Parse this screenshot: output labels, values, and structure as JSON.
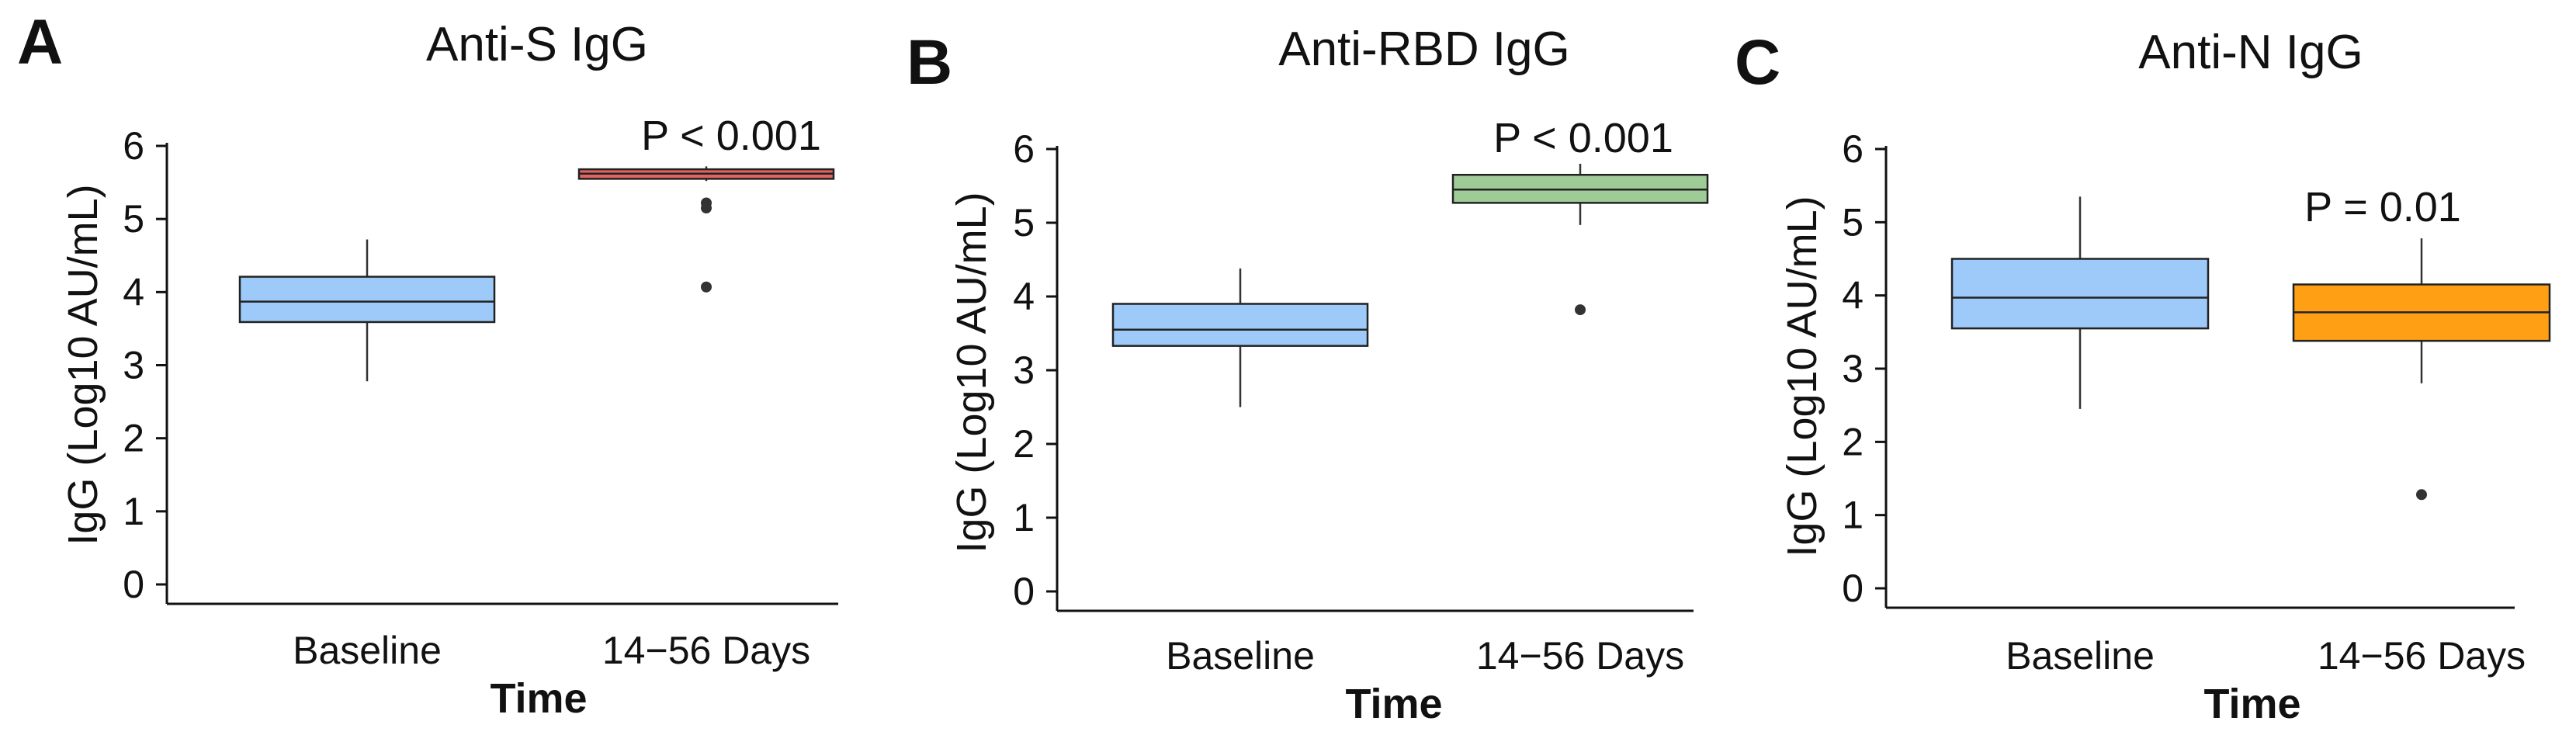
{
  "chart_data": [
    {
      "type": "boxplot",
      "panel": "A",
      "title": "Anti-S IgG",
      "xlabel": "Time",
      "ylabel": "IgG (Log10 AU/mL)",
      "ylim": [
        0,
        6
      ],
      "yticks": [
        "0",
        "1",
        "2",
        "3",
        "4",
        "5",
        "6"
      ],
      "categories": [
        "Baseline",
        "14−56 Days"
      ],
      "p_value": "P < 0.001",
      "boxes": [
        {
          "name": "Baseline",
          "whisker_low": 2.78,
          "q1": 3.59,
          "median": 3.87,
          "q3": 4.21,
          "whisker_high": 4.72,
          "outliers": [],
          "color": "#9ECAF9"
        },
        {
          "name": "14−56 Days",
          "whisker_low": 5.52,
          "q1": 5.55,
          "median": 5.62,
          "q3": 5.68,
          "whisker_high": 5.72,
          "outliers": [
            5.15,
            5.22,
            4.07
          ],
          "color": "#E06560"
        }
      ]
    },
    {
      "type": "boxplot",
      "panel": "B",
      "title": "Anti-RBD IgG",
      "xlabel": "Time",
      "ylabel": "IgG (Log10 AU/mL)",
      "ylim": [
        0,
        6
      ],
      "yticks": [
        "0",
        "1",
        "2",
        "3",
        "4",
        "5",
        "6"
      ],
      "categories": [
        "Baseline",
        "14−56 Days"
      ],
      "p_value": "P  < 0.001",
      "boxes": [
        {
          "name": "Baseline",
          "whisker_low": 2.5,
          "q1": 3.33,
          "median": 3.55,
          "q3": 3.9,
          "whisker_high": 4.38,
          "outliers": [],
          "color": "#9ECAF9"
        },
        {
          "name": "14−56 Days",
          "whisker_low": 4.97,
          "q1": 5.27,
          "median": 5.45,
          "q3": 5.65,
          "whisker_high": 5.8,
          "outliers": [
            3.82
          ],
          "color": "#9FCC96"
        }
      ]
    },
    {
      "type": "boxplot",
      "panel": "C",
      "title": "Anti-N IgG",
      "xlabel": "Time",
      "ylabel": "IgG (Log10 AU/mL)",
      "ylim": [
        0,
        6
      ],
      "yticks": [
        "0",
        "1",
        "2",
        "3",
        "4",
        "5",
        "6"
      ],
      "categories": [
        "Baseline",
        "14−56 Days"
      ],
      "p_value": "P = 0.01",
      "boxes": [
        {
          "name": "Baseline",
          "whisker_low": 2.45,
          "q1": 3.55,
          "median": 3.97,
          "q3": 4.5,
          "whisker_high": 5.35,
          "outliers": [],
          "color": "#9ECAF9"
        },
        {
          "name": "14−56 Days",
          "whisker_low": 2.8,
          "q1": 3.38,
          "median": 3.77,
          "q3": 4.15,
          "whisker_high": 4.78,
          "outliers": [
            1.28
          ],
          "color": "#FF9F14"
        }
      ]
    }
  ]
}
